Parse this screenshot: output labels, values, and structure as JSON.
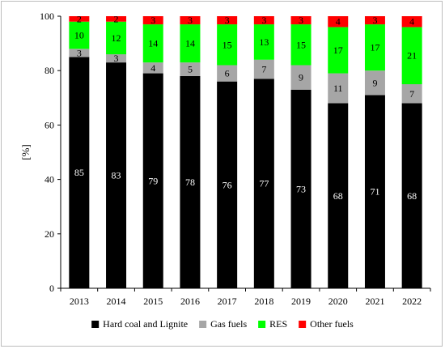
{
  "chart_data": {
    "type": "bar",
    "stacked": true,
    "categories": [
      "2013",
      "2014",
      "2015",
      "2016",
      "2017",
      "2018",
      "2019",
      "2020",
      "2021",
      "2022"
    ],
    "ylabel": "[%]",
    "ylim": [
      0,
      100
    ],
    "yticks": [
      0,
      20,
      40,
      60,
      80,
      100
    ],
    "grid": false,
    "legend_position": "bottom",
    "series": [
      {
        "name": "Hard coal and Lignite",
        "color": "#000000",
        "label_color": "#ffffff",
        "values": [
          85,
          83,
          79,
          78,
          76,
          77,
          73,
          68,
          71,
          68
        ]
      },
      {
        "name": "Gas fuels",
        "color": "#a6a6a6",
        "label_color": "#000000",
        "values": [
          3,
          3,
          4,
          5,
          6,
          7,
          9,
          11,
          9,
          7
        ]
      },
      {
        "name": "RES",
        "color": "#00ff00",
        "label_color": "#000000",
        "values": [
          10,
          12,
          14,
          14,
          15,
          13,
          15,
          17,
          17,
          21
        ]
      },
      {
        "name": "Other fuels",
        "color": "#ff0000",
        "label_color": "#000000",
        "values": [
          2,
          2,
          3,
          3,
          3,
          3,
          3,
          4,
          3,
          4
        ]
      }
    ]
  }
}
